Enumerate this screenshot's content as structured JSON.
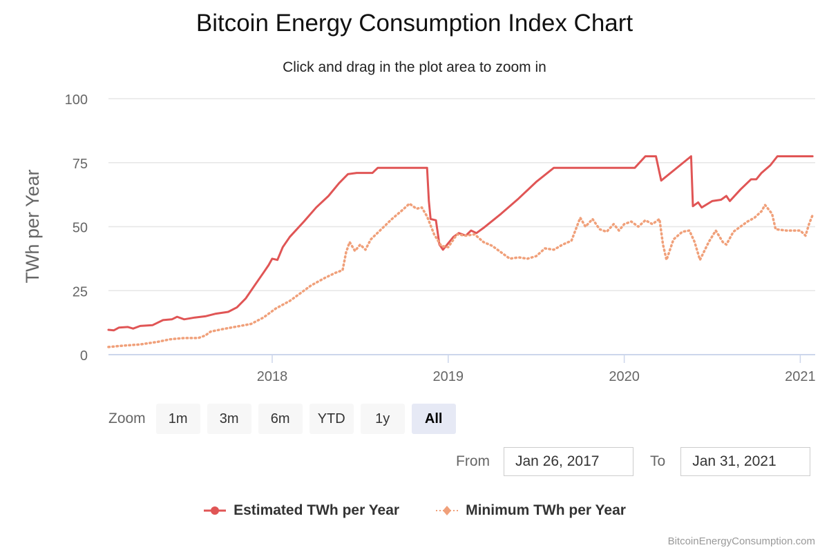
{
  "header": {
    "title": "Bitcoin Energy Consumption Index Chart",
    "subtitle": "Click and drag in the plot area to zoom in"
  },
  "range_selector": {
    "zoom_label": "Zoom",
    "buttons": [
      {
        "label": "1m",
        "active": false
      },
      {
        "label": "3m",
        "active": false
      },
      {
        "label": "6m",
        "active": false
      },
      {
        "label": "YTD",
        "active": false
      },
      {
        "label": "1y",
        "active": false
      },
      {
        "label": "All",
        "active": true
      }
    ],
    "from_label": "From",
    "from_value": "Jan 26, 2017",
    "to_label": "To",
    "to_value": "Jan 31, 2021"
  },
  "credits": "BitcoinEnergyConsumption.com",
  "colors": {
    "estimated": "#e05555",
    "minimum": "#f0a07a",
    "grid": "#e6e6e6",
    "axis": "#ccd6eb",
    "tick_text": "#666666"
  },
  "chart_data": {
    "type": "line",
    "title": "Bitcoin Energy Consumption Index Chart",
    "subtitle": "Click and drag in the plot area to zoom in",
    "xlabel": "",
    "ylabel": "TWh per Year",
    "x_unit": "decimal year",
    "xlim": [
      2017.04,
      2021.09
    ],
    "ylim": [
      0,
      100
    ],
    "yticks": [
      0,
      25,
      50,
      75,
      100
    ],
    "xticks": [
      {
        "value": 2018,
        "label": "2018"
      },
      {
        "value": 2019,
        "label": "2019"
      },
      {
        "value": 2020,
        "label": "2020"
      },
      {
        "value": 2021,
        "label": "2021"
      }
    ],
    "grid": true,
    "legend": "bottom-center",
    "series": [
      {
        "name": "Estimated TWh per Year",
        "style": "solid",
        "points": [
          [
            2017.07,
            9.7
          ],
          [
            2017.1,
            9.5
          ],
          [
            2017.13,
            10.6
          ],
          [
            2017.18,
            10.8
          ],
          [
            2017.21,
            10.2
          ],
          [
            2017.25,
            11.2
          ],
          [
            2017.32,
            11.5
          ],
          [
            2017.38,
            13.5
          ],
          [
            2017.43,
            13.8
          ],
          [
            2017.46,
            14.8
          ],
          [
            2017.5,
            13.8
          ],
          [
            2017.56,
            14.5
          ],
          [
            2017.62,
            15.0
          ],
          [
            2017.68,
            16.0
          ],
          [
            2017.75,
            16.7
          ],
          [
            2017.8,
            18.5
          ],
          [
            2017.85,
            22.0
          ],
          [
            2017.9,
            27.0
          ],
          [
            2017.95,
            32.0
          ],
          [
            2017.98,
            35.0
          ],
          [
            2018.0,
            37.5
          ],
          [
            2018.03,
            37.0
          ],
          [
            2018.06,
            42.0
          ],
          [
            2018.1,
            46.0
          ],
          [
            2018.18,
            52.0
          ],
          [
            2018.25,
            57.5
          ],
          [
            2018.32,
            62.0
          ],
          [
            2018.38,
            67.0
          ],
          [
            2018.43,
            70.5
          ],
          [
            2018.48,
            71.0
          ],
          [
            2018.57,
            71.0
          ],
          [
            2018.6,
            73.0
          ],
          [
            2018.7,
            73.0
          ],
          [
            2018.8,
            73.0
          ],
          [
            2018.88,
            73.0
          ],
          [
            2018.89,
            60.0
          ],
          [
            2018.9,
            53.0
          ],
          [
            2018.93,
            52.5
          ],
          [
            2018.95,
            43.0
          ],
          [
            2018.97,
            41.0
          ],
          [
            2019.0,
            43.5
          ],
          [
            2019.03,
            46.0
          ],
          [
            2019.06,
            47.5
          ],
          [
            2019.1,
            46.5
          ],
          [
            2019.13,
            48.5
          ],
          [
            2019.16,
            47.5
          ],
          [
            2019.2,
            49.5
          ],
          [
            2019.3,
            55.0
          ],
          [
            2019.4,
            61.0
          ],
          [
            2019.5,
            67.5
          ],
          [
            2019.6,
            73.0
          ],
          [
            2019.8,
            73.0
          ],
          [
            2020.0,
            73.0
          ],
          [
            2020.06,
            73.0
          ],
          [
            2020.12,
            77.5
          ],
          [
            2020.18,
            77.5
          ],
          [
            2020.21,
            68.0
          ],
          [
            2020.38,
            77.5
          ],
          [
            2020.39,
            58.0
          ],
          [
            2020.42,
            59.5
          ],
          [
            2020.44,
            57.5
          ],
          [
            2020.5,
            60.0
          ],
          [
            2020.55,
            60.5
          ],
          [
            2020.58,
            62.0
          ],
          [
            2020.6,
            60.0
          ],
          [
            2020.66,
            64.5
          ],
          [
            2020.72,
            68.5
          ],
          [
            2020.75,
            68.5
          ],
          [
            2020.78,
            71.0
          ],
          [
            2020.83,
            74.0
          ],
          [
            2020.87,
            77.5
          ],
          [
            2021.0,
            77.5
          ],
          [
            2021.07,
            77.5
          ]
        ]
      },
      {
        "name": "Minimum TWh per Year",
        "style": "dotted",
        "points": [
          [
            2017.07,
            3.0
          ],
          [
            2017.15,
            3.5
          ],
          [
            2017.25,
            4.0
          ],
          [
            2017.35,
            5.0
          ],
          [
            2017.42,
            6.0
          ],
          [
            2017.5,
            6.5
          ],
          [
            2017.58,
            6.5
          ],
          [
            2017.62,
            7.5
          ],
          [
            2017.65,
            9.0
          ],
          [
            2017.72,
            10.0
          ],
          [
            2017.8,
            11.0
          ],
          [
            2017.88,
            12.0
          ],
          [
            2017.95,
            14.5
          ],
          [
            2018.02,
            18.0
          ],
          [
            2018.1,
            21.0
          ],
          [
            2018.16,
            24.0
          ],
          [
            2018.22,
            27.0
          ],
          [
            2018.3,
            30.0
          ],
          [
            2018.36,
            32.0
          ],
          [
            2018.4,
            33.0
          ],
          [
            2018.42,
            40.0
          ],
          [
            2018.44,
            44.0
          ],
          [
            2018.47,
            40.5
          ],
          [
            2018.5,
            43.0
          ],
          [
            2018.53,
            41.0
          ],
          [
            2018.56,
            45.0
          ],
          [
            2018.62,
            49.0
          ],
          [
            2018.68,
            53.0
          ],
          [
            2018.74,
            56.5
          ],
          [
            2018.78,
            59.0
          ],
          [
            2018.82,
            57.0
          ],
          [
            2018.85,
            57.5
          ],
          [
            2018.88,
            54.0
          ],
          [
            2018.92,
            47.0
          ],
          [
            2018.96,
            42.5
          ],
          [
            2019.0,
            42.0
          ],
          [
            2019.05,
            47.0
          ],
          [
            2019.1,
            46.5
          ],
          [
            2019.15,
            47.0
          ],
          [
            2019.2,
            44.0
          ],
          [
            2019.25,
            42.5
          ],
          [
            2019.3,
            40.0
          ],
          [
            2019.35,
            37.5
          ],
          [
            2019.4,
            38.0
          ],
          [
            2019.45,
            37.5
          ],
          [
            2019.5,
            38.5
          ],
          [
            2019.55,
            41.5
          ],
          [
            2019.6,
            41.0
          ],
          [
            2019.65,
            43.0
          ],
          [
            2019.7,
            44.5
          ],
          [
            2019.75,
            53.5
          ],
          [
            2019.78,
            50.0
          ],
          [
            2019.82,
            53.0
          ],
          [
            2019.86,
            49.0
          ],
          [
            2019.9,
            48.0
          ],
          [
            2019.94,
            51.0
          ],
          [
            2019.97,
            48.5
          ],
          [
            2020.0,
            51.0
          ],
          [
            2020.04,
            52.0
          ],
          [
            2020.08,
            50.0
          ],
          [
            2020.12,
            52.5
          ],
          [
            2020.16,
            51.0
          ],
          [
            2020.2,
            53.0
          ],
          [
            2020.22,
            43.0
          ],
          [
            2020.24,
            37.0
          ],
          [
            2020.28,
            45.0
          ],
          [
            2020.33,
            48.0
          ],
          [
            2020.37,
            48.5
          ],
          [
            2020.4,
            44.0
          ],
          [
            2020.43,
            37.0
          ],
          [
            2020.48,
            44.0
          ],
          [
            2020.52,
            48.5
          ],
          [
            2020.56,
            44.0
          ],
          [
            2020.58,
            43.0
          ],
          [
            2020.62,
            48.0
          ],
          [
            2020.66,
            50.0
          ],
          [
            2020.7,
            52.0
          ],
          [
            2020.74,
            53.5
          ],
          [
            2020.78,
            56.0
          ],
          [
            2020.8,
            58.5
          ],
          [
            2020.84,
            55.0
          ],
          [
            2020.86,
            49.0
          ],
          [
            2020.92,
            48.5
          ],
          [
            2021.0,
            48.5
          ],
          [
            2021.03,
            46.5
          ],
          [
            2021.05,
            51.0
          ],
          [
            2021.07,
            54.5
          ]
        ]
      }
    ]
  }
}
